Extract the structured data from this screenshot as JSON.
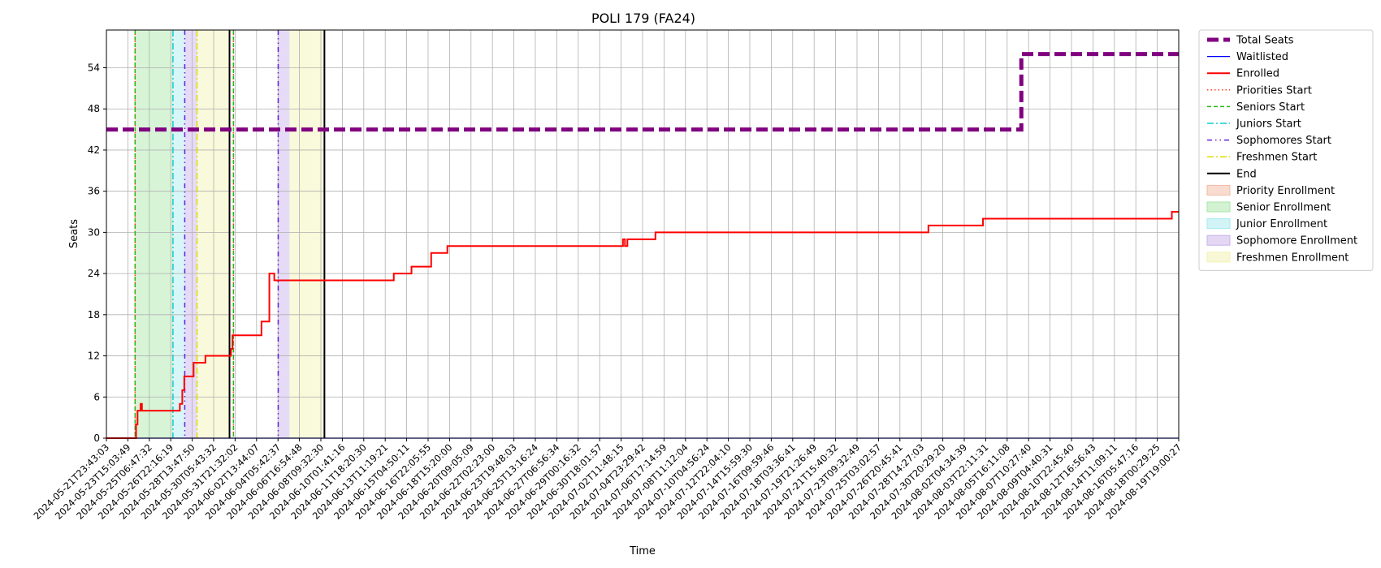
{
  "chart_data": {
    "type": "line",
    "title": "POLI 179 (FA24)",
    "xlabel": "Time",
    "ylabel": "Seats",
    "ylim": [
      0,
      59.5
    ],
    "yticks": [
      0,
      6,
      12,
      18,
      24,
      30,
      36,
      42,
      48,
      54
    ],
    "grid": true,
    "legend_position": "outside-right",
    "x_range": [
      "2024-05-21T23:43:03",
      "2024-08-20T20:00:00"
    ],
    "xtick_labels": [
      "2024-05-21T23:43:03",
      "2024-05-23T15:03:49",
      "2024-05-25T06:47:32",
      "2024-05-26T22:16:19",
      "2024-05-28T13:47:50",
      "2024-05-30T05:43:32",
      "2024-05-31T21:32:02",
      "2024-06-02T13:44:07",
      "2024-06-04T05:42:37",
      "2024-06-06T16:54:48",
      "2024-06-08T09:32:30",
      "2024-06-10T01:41:16",
      "2024-06-11T18:20:30",
      "2024-06-13T11:19:21",
      "2024-06-15T04:50:11",
      "2024-06-16T22:05:55",
      "2024-06-18T15:20:00",
      "2024-06-20T09:05:09",
      "2024-06-22T02:23:00",
      "2024-06-23T19:48:03",
      "2024-06-25T13:16:24",
      "2024-06-27T06:56:34",
      "2024-06-29T00:16:32",
      "2024-06-30T18:01:57",
      "2024-07-02T11:48:15",
      "2024-07-04T23:29:42",
      "2024-07-06T17:14:59",
      "2024-07-08T11:12:04",
      "2024-07-10T04:56:24",
      "2024-07-12T22:04:10",
      "2024-07-14T15:59:30",
      "2024-07-16T09:59:46",
      "2024-07-18T03:36:41",
      "2024-07-19T21:26:49",
      "2024-07-21T15:40:32",
      "2024-07-23T09:32:49",
      "2024-07-25T03:02:57",
      "2024-07-26T20:45:41",
      "2024-07-28T14:27:03",
      "2024-07-30T20:29:20",
      "2024-08-02T04:34:39",
      "2024-08-03T22:11:31",
      "2024-08-05T16:11:08",
      "2024-08-07T10:27:40",
      "2024-08-09T04:40:31",
      "2024-08-10T22:45:40",
      "2024-08-12T16:56:43",
      "2024-08-14T11:09:11",
      "2024-08-16T05:47:16",
      "2024-08-18T00:29:25",
      "2024-08-19T19:00:27"
    ],
    "series": [
      {
        "name": "Total Seats",
        "color": "#800080",
        "style": "dashed-thick",
        "points": [
          [
            "2024-05-21T23:43:03",
            45
          ],
          [
            "2024-08-07T12:00:00",
            45
          ],
          [
            "2024-08-07T12:00:00",
            56
          ],
          [
            "2024-08-20T20:00:00",
            56
          ]
        ]
      },
      {
        "name": "Waitlisted",
        "color": "#0000ff",
        "style": "solid-thin",
        "points": [
          [
            "2024-05-21T23:43:03",
            0
          ],
          [
            "2024-08-20T20:00:00",
            0
          ]
        ]
      },
      {
        "name": "Enrolled",
        "color": "#ff0000",
        "style": "solid",
        "points": [
          [
            "2024-05-21T23:43:03",
            0
          ],
          [
            "2024-05-24T12:00:00",
            0
          ],
          [
            "2024-05-24T12:00:00",
            2
          ],
          [
            "2024-05-24T15:00:00",
            2
          ],
          [
            "2024-05-24T15:00:00",
            4
          ],
          [
            "2024-05-24T21:00:00",
            4
          ],
          [
            "2024-05-24T21:00:00",
            5
          ],
          [
            "2024-05-25T00:00:00",
            5
          ],
          [
            "2024-05-25T00:00:00",
            4
          ],
          [
            "2024-05-28T05:00:00",
            4
          ],
          [
            "2024-05-28T05:00:00",
            5
          ],
          [
            "2024-05-28T10:00:00",
            5
          ],
          [
            "2024-05-28T10:00:00",
            7
          ],
          [
            "2024-05-28T14:00:00",
            7
          ],
          [
            "2024-05-28T14:00:00",
            9
          ],
          [
            "2024-05-29T09:00:00",
            9
          ],
          [
            "2024-05-29T09:00:00",
            11
          ],
          [
            "2024-05-30T09:00:00",
            11
          ],
          [
            "2024-05-30T09:00:00",
            12
          ],
          [
            "2024-06-01T13:00:00",
            12
          ],
          [
            "2024-06-01T13:00:00",
            13
          ],
          [
            "2024-06-01T16:00:00",
            13
          ],
          [
            "2024-06-01T16:00:00",
            15
          ],
          [
            "2024-06-04T03:00:00",
            15
          ],
          [
            "2024-06-04T03:00:00",
            17
          ],
          [
            "2024-06-04T19:00:00",
            17
          ],
          [
            "2024-06-04T19:00:00",
            24
          ],
          [
            "2024-06-05T05:00:00",
            24
          ],
          [
            "2024-06-05T05:00:00",
            23
          ],
          [
            "2024-06-15T08:00:00",
            23
          ],
          [
            "2024-06-15T08:00:00",
            24
          ],
          [
            "2024-06-16T20:00:00",
            24
          ],
          [
            "2024-06-16T20:00:00",
            25
          ],
          [
            "2024-06-18T12:00:00",
            25
          ],
          [
            "2024-06-18T12:00:00",
            27
          ],
          [
            "2024-06-19T21:00:00",
            27
          ],
          [
            "2024-06-19T21:00:00",
            28
          ],
          [
            "2024-07-04T18:00:00",
            28
          ],
          [
            "2024-07-04T18:00:00",
            29
          ],
          [
            "2024-07-04T22:00:00",
            29
          ],
          [
            "2024-07-04T22:00:00",
            28
          ],
          [
            "2024-07-05T03:00:00",
            28
          ],
          [
            "2024-07-05T03:00:00",
            29
          ],
          [
            "2024-07-07T12:00:00",
            29
          ],
          [
            "2024-07-07T12:00:00",
            30
          ],
          [
            "2024-07-30T15:00:00",
            30
          ],
          [
            "2024-07-30T15:00:00",
            31
          ],
          [
            "2024-08-04T06:00:00",
            31
          ],
          [
            "2024-08-04T06:00:00",
            32
          ],
          [
            "2024-08-20T06:00:00",
            32
          ],
          [
            "2024-08-20T06:00:00",
            33
          ],
          [
            "2024-08-20T20:00:00",
            33
          ]
        ]
      }
    ],
    "vlines": [
      {
        "name": "Priorities Start",
        "color": "#ff3b1f",
        "style": "dotted",
        "x": "2024-05-24T10:00:00"
      },
      {
        "name": "Seniors Start",
        "color": "#22bb11",
        "style": "dashed",
        "x": "2024-05-24T10:00:00"
      },
      {
        "name": "Juniors Start",
        "color": "#11cccc",
        "style": "dashdot",
        "x": "2024-05-27T15:00:00"
      },
      {
        "name": "Sophomores Start",
        "color": "#6622dd",
        "style": "dashdotdot",
        "x": "2024-05-28T15:00:00"
      },
      {
        "name": "Freshmen Start",
        "color": "#dddd00",
        "style": "dashdot",
        "x": "2024-05-29T16:00:00"
      },
      {
        "name": "End",
        "color": "#000000",
        "style": "solid",
        "x": "2024-06-01T10:00:00"
      },
      {
        "name": "Priorities Start",
        "color": "#ff3b1f",
        "style": "dotted",
        "x": "2024-06-01T18:00:00"
      },
      {
        "name": "Seniors Start",
        "color": "#22bb11",
        "style": "dashed",
        "x": "2024-06-01T18:00:00"
      },
      {
        "name": "Sophomores Start",
        "color": "#6622dd",
        "style": "dashdotdot",
        "x": "2024-06-05T13:00:00"
      },
      {
        "name": "End",
        "color": "#000000",
        "style": "solid",
        "x": "2024-06-09T11:00:00"
      }
    ],
    "spans": [
      {
        "name": "Priority Enrollment",
        "color": "#f4b9a2",
        "x0": "2024-05-24T10:00:00",
        "x1": "2024-05-24T12:00:00"
      },
      {
        "name": "Senior Enrollment",
        "color": "#a6e6a6",
        "x0": "2024-05-24T12:00:00",
        "x1": "2024-05-27T15:00:00"
      },
      {
        "name": "Junior Enrollment",
        "color": "#a6eaf0",
        "x0": "2024-05-27T15:00:00",
        "x1": "2024-05-28T15:00:00"
      },
      {
        "name": "Sophomore Enrollment",
        "color": "#c7b0ea",
        "x0": "2024-05-28T15:00:00",
        "x1": "2024-05-29T16:00:00"
      },
      {
        "name": "Freshmen Enrollment",
        "color": "#f2f2b0",
        "x0": "2024-05-29T16:00:00",
        "x1": "2024-06-01T10:00:00"
      },
      {
        "name": "Sophomore Enrollment",
        "color": "#c7b0ea",
        "x0": "2024-06-05T13:00:00",
        "x1": "2024-06-06T12:00:00"
      },
      {
        "name": "Freshmen Enrollment",
        "color": "#f2f2b0",
        "x0": "2024-06-06T12:00:00",
        "x1": "2024-06-09T11:00:00"
      }
    ],
    "legend": [
      {
        "label": "Total Seats",
        "kind": "line",
        "color": "#800080",
        "style": "dashed-thick"
      },
      {
        "label": "Waitlisted",
        "kind": "line",
        "color": "#0000ff",
        "style": "solid-thin"
      },
      {
        "label": "Enrolled",
        "kind": "line",
        "color": "#ff0000",
        "style": "solid"
      },
      {
        "label": "Priorities Start",
        "kind": "line",
        "color": "#ff3b1f",
        "style": "dotted"
      },
      {
        "label": "Seniors Start",
        "kind": "line",
        "color": "#22bb11",
        "style": "dashed"
      },
      {
        "label": "Juniors Start",
        "kind": "line",
        "color": "#11cccc",
        "style": "dashdot"
      },
      {
        "label": "Sophomores Start",
        "kind": "line",
        "color": "#6622dd",
        "style": "dashdotdot"
      },
      {
        "label": "Freshmen Start",
        "kind": "line",
        "color": "#dddd00",
        "style": "dashdot"
      },
      {
        "label": "End",
        "kind": "line",
        "color": "#000000",
        "style": "solid"
      },
      {
        "label": "Priority Enrollment",
        "kind": "patch",
        "color": "#f4b9a2"
      },
      {
        "label": "Senior Enrollment",
        "kind": "patch",
        "color": "#a6e6a6"
      },
      {
        "label": "Junior Enrollment",
        "kind": "patch",
        "color": "#a6eaf0"
      },
      {
        "label": "Sophomore Enrollment",
        "kind": "patch",
        "color": "#c7b0ea"
      },
      {
        "label": "Freshmen Enrollment",
        "kind": "patch",
        "color": "#f2f2b0"
      }
    ]
  }
}
